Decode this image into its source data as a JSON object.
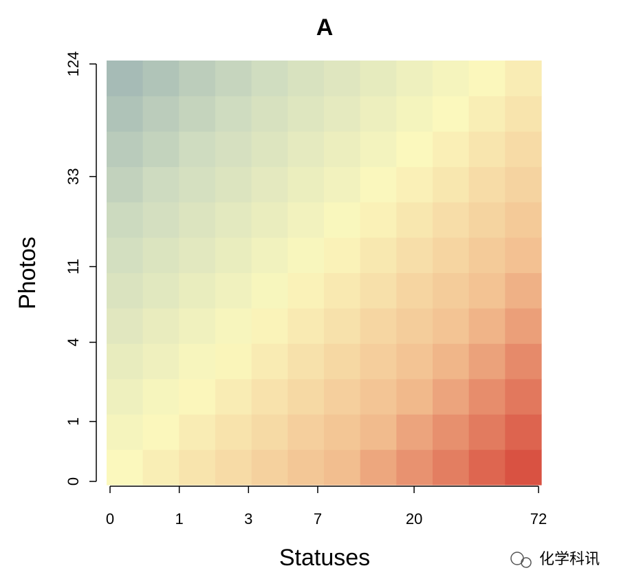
{
  "chart_data": {
    "type": "heatmap",
    "title": "A",
    "x_label": "Statuses",
    "y_label": "Photos",
    "xscale": "log1p",
    "yscale": "log1p",
    "xlim": [
      0,
      72
    ],
    "ylim": [
      0,
      124
    ],
    "xticks": [
      0,
      1,
      3,
      7,
      20,
      72
    ],
    "yticks": [
      0,
      1,
      4,
      11,
      33,
      124
    ],
    "zlim": [
      -1,
      1
    ],
    "colors": [
      "#8fa9b0",
      "#cfdcc0",
      "#fbf8bd",
      "#f2be8f",
      "#d43d33"
    ],
    "z": [
      [
        0.0,
        0.09,
        0.17,
        0.25,
        0.34,
        0.42,
        0.5,
        0.59,
        0.67,
        0.75,
        0.84,
        0.92
      ],
      [
        -0.07,
        0.01,
        0.1,
        0.18,
        0.26,
        0.35,
        0.43,
        0.51,
        0.6,
        0.68,
        0.76,
        0.85
      ],
      [
        -0.15,
        -0.06,
        0.02,
        0.1,
        0.19,
        0.27,
        0.35,
        0.44,
        0.52,
        0.6,
        0.69,
        0.77
      ],
      [
        -0.22,
        -0.14,
        -0.05,
        0.03,
        0.11,
        0.2,
        0.28,
        0.36,
        0.45,
        0.53,
        0.61,
        0.7
      ],
      [
        -0.3,
        -0.21,
        -0.13,
        -0.05,
        0.04,
        0.12,
        0.2,
        0.29,
        0.37,
        0.45,
        0.54,
        0.62
      ],
      [
        -0.37,
        -0.29,
        -0.2,
        -0.12,
        -0.04,
        0.05,
        0.13,
        0.21,
        0.3,
        0.38,
        0.46,
        0.55
      ],
      [
        -0.45,
        -0.36,
        -0.28,
        -0.2,
        -0.11,
        -0.03,
        0.05,
        0.14,
        0.22,
        0.3,
        0.39,
        0.47
      ],
      [
        -0.52,
        -0.44,
        -0.35,
        -0.27,
        -0.19,
        -0.1,
        -0.02,
        0.06,
        0.15,
        0.23,
        0.31,
        0.4
      ],
      [
        -0.6,
        -0.51,
        -0.43,
        -0.35,
        -0.26,
        -0.18,
        -0.1,
        -0.01,
        0.07,
        0.15,
        0.24,
        0.32
      ],
      [
        -0.67,
        -0.59,
        -0.5,
        -0.42,
        -0.34,
        -0.25,
        -0.17,
        -0.09,
        0.0,
        0.08,
        0.16,
        0.25
      ],
      [
        -0.75,
        -0.66,
        -0.58,
        -0.5,
        -0.41,
        -0.33,
        -0.25,
        -0.16,
        -0.08,
        0.0,
        0.09,
        0.17
      ],
      [
        -0.82,
        -0.74,
        -0.65,
        -0.57,
        -0.49,
        -0.4,
        -0.32,
        -0.24,
        -0.15,
        -0.07,
        0.01,
        0.1
      ]
    ]
  },
  "watermark": "化学科讯"
}
